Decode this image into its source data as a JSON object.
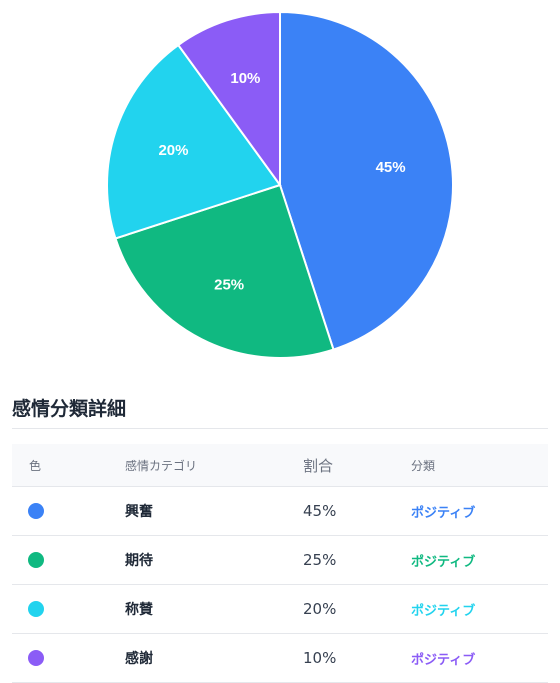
{
  "chart_data": {
    "type": "pie",
    "slices": [
      {
        "label": "興奮",
        "value": 45,
        "color": "#3b82f6"
      },
      {
        "label": "期待",
        "value": 25,
        "color": "#10b981"
      },
      {
        "label": "称賛",
        "value": 20,
        "color": "#22d3ee"
      },
      {
        "label": "感謝",
        "value": 10,
        "color": "#8b5cf6"
      }
    ],
    "label_unit": "%",
    "start_angle": "12 o'clock",
    "direction": "clockwise"
  },
  "section": {
    "title": "感情分類詳細"
  },
  "table": {
    "headers": {
      "color": "色",
      "category": "感情カテゴリ",
      "ratio": "割合",
      "type": "分類"
    },
    "rows": [
      {
        "category": "興奮",
        "ratio": "45%",
        "type": "ポジティブ",
        "color": "#3b82f6"
      },
      {
        "category": "期待",
        "ratio": "25%",
        "type": "ポジティブ",
        "color": "#10b981"
      },
      {
        "category": "称賛",
        "ratio": "20%",
        "type": "ポジティブ",
        "color": "#22d3ee"
      },
      {
        "category": "感謝",
        "ratio": "10%",
        "type": "ポジティブ",
        "color": "#8b5cf6"
      }
    ]
  }
}
